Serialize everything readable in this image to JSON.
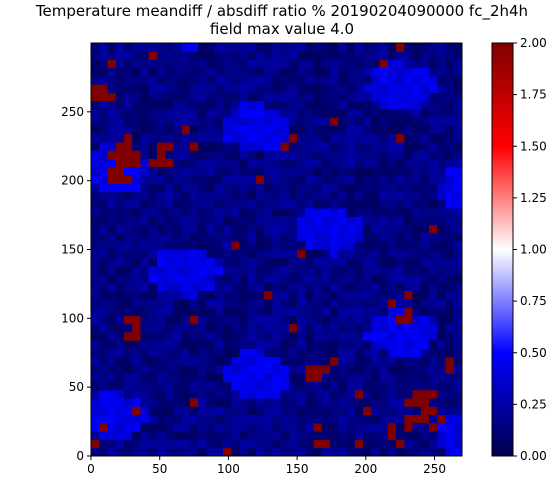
{
  "chart_data": {
    "type": "heatmap",
    "title": "Temperature meandiff / absdiff ratio % 20190204090000 fc_2h4h",
    "subtitle": "field max value 4.0",
    "xlim": [
      0,
      270
    ],
    "ylim": [
      0,
      300
    ],
    "x_ticks": [
      "0",
      "50",
      "100",
      "150",
      "200",
      "250"
    ],
    "y_ticks": [
      "0",
      "50",
      "100",
      "150",
      "200",
      "250"
    ],
    "colorbar": {
      "range": [
        0.0,
        2.0
      ],
      "colormap": "seismic",
      "ticks": [
        "0.00",
        "0.25",
        "0.50",
        "0.75",
        "1.00",
        "1.25",
        "1.50",
        "1.75",
        "2.00"
      ]
    },
    "colors": {
      "low": "#00004c",
      "mid_low": "#0000ff",
      "mid": "#ffffff",
      "mid_high": "#ff0000",
      "high": "#800000",
      "background_field": "#000066"
    },
    "notes_clusters": [
      {
        "x": 20,
        "y": 210,
        "r": 15,
        "v": 2.0
      },
      {
        "x": 50,
        "y": 215,
        "r": 10,
        "v": 2.0
      },
      {
        "x": 25,
        "y": 90,
        "r": 8,
        "v": 2.0
      },
      {
        "x": 225,
        "y": 105,
        "r": 10,
        "v": 2.0
      },
      {
        "x": 240,
        "y": 30,
        "r": 15,
        "v": 2.0
      },
      {
        "x": 220,
        "y": 15,
        "r": 10,
        "v": 2.0
      },
      {
        "x": 165,
        "y": 60,
        "r": 12,
        "v": 2.0
      },
      {
        "x": 160,
        "y": 10,
        "r": 10,
        "v": 2.0
      },
      {
        "x": 140,
        "y": 225,
        "r": 8,
        "v": 2.0
      },
      {
        "x": 5,
        "y": 260,
        "r": 8,
        "v": 2.0
      }
    ]
  }
}
